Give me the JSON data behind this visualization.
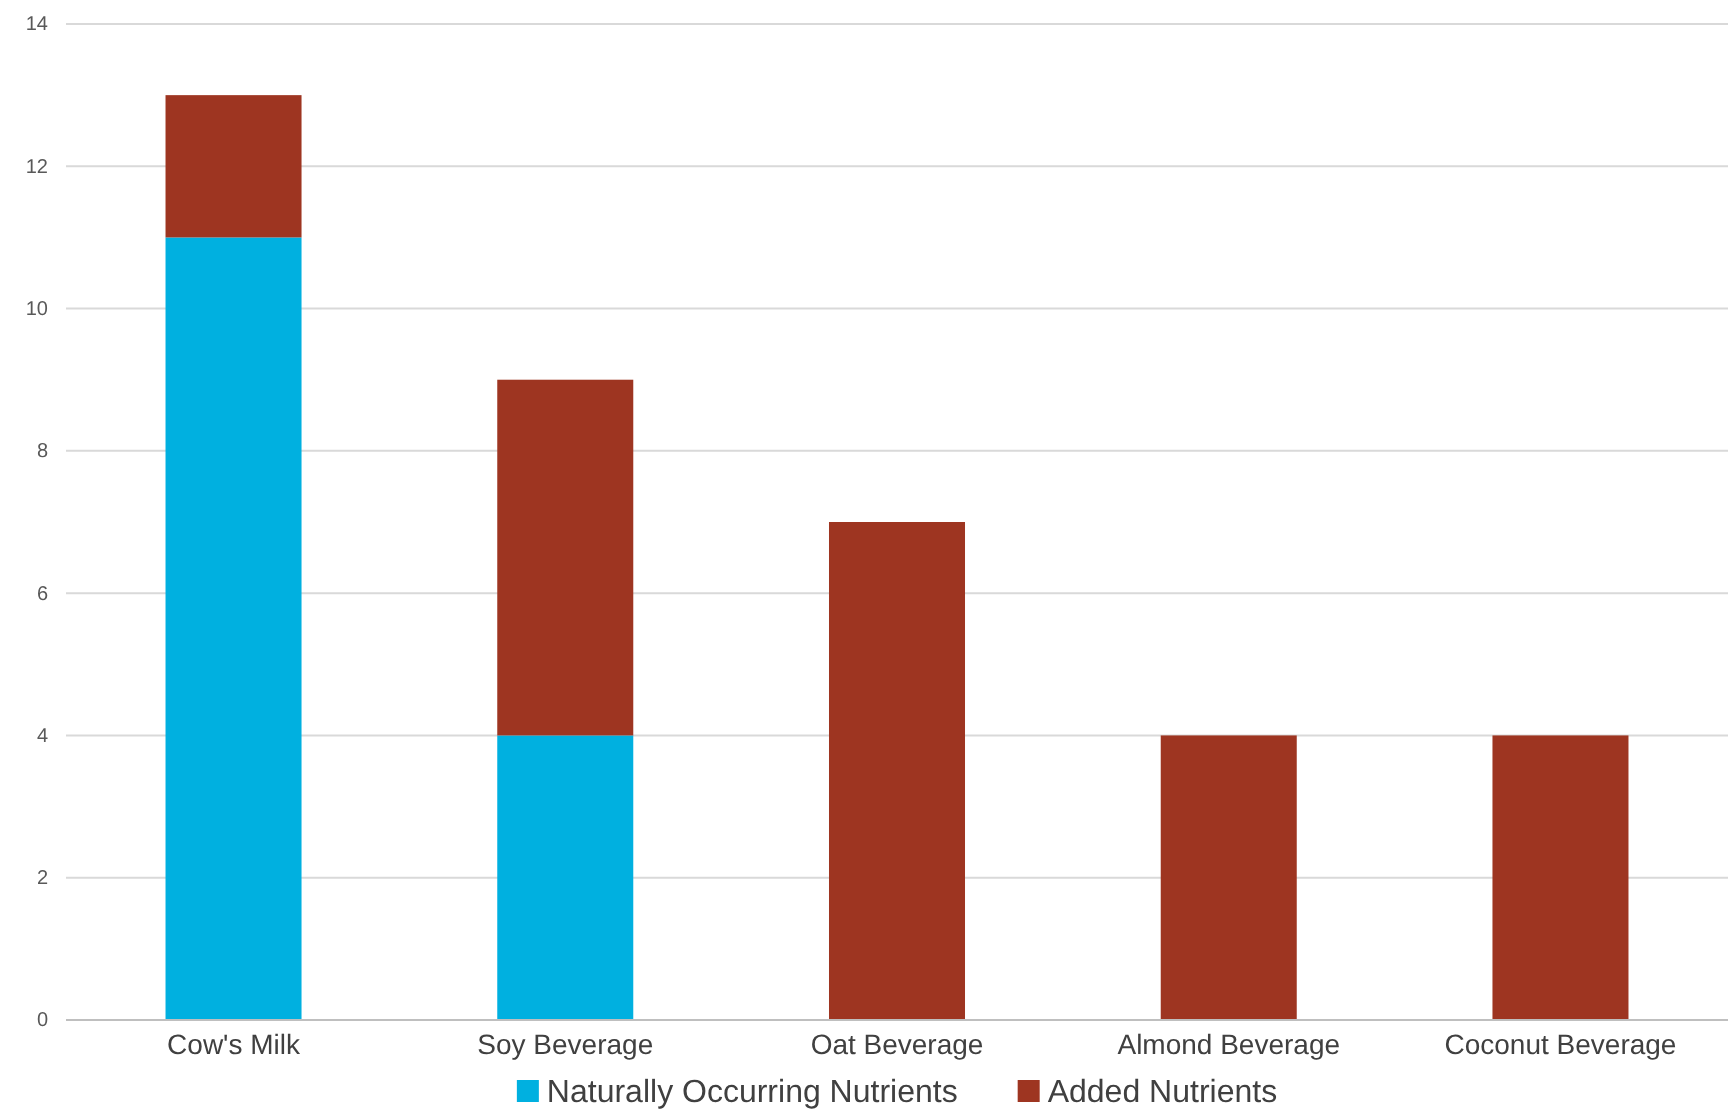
{
  "chart_data": {
    "type": "bar",
    "stacked": true,
    "categories": [
      "Cow's Milk",
      "Soy Beverage",
      "Oat Beverage",
      "Almond Beverage",
      "Coconut Beverage"
    ],
    "series": [
      {
        "name": "Naturally Occurring Nutrients",
        "color": "#00b0e0",
        "values": [
          11,
          4,
          0,
          0,
          0
        ]
      },
      {
        "name": "Added Nutrients",
        "color": "#9e3521",
        "values": [
          2,
          5,
          7,
          4,
          4
        ]
      }
    ],
    "ylim": [
      0,
      14
    ],
    "yticks": [
      0,
      2,
      4,
      6,
      8,
      10,
      12,
      14
    ],
    "grid": "y",
    "legend": "bottom"
  }
}
